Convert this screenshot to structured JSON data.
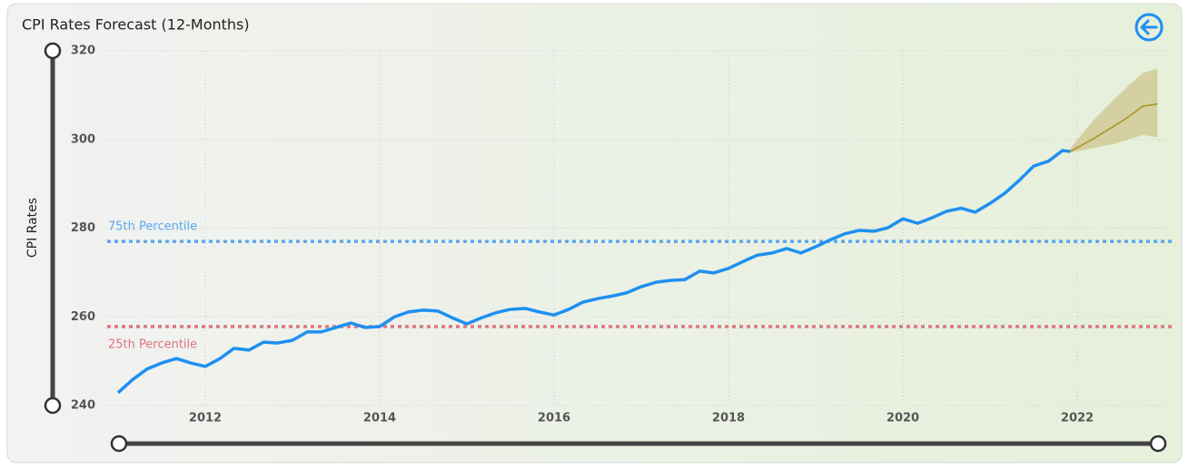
{
  "chart_data": {
    "type": "line",
    "title": "CPI Rates Forecast (12-Months)",
    "y_label": "CPI Rates",
    "x": [
      2011.0,
      2011.17,
      2011.33,
      2011.5,
      2011.67,
      2011.83,
      2012.0,
      2012.17,
      2012.33,
      2012.5,
      2012.67,
      2012.83,
      2013.0,
      2013.17,
      2013.33,
      2013.5,
      2013.67,
      2013.83,
      2014.0,
      2014.17,
      2014.33,
      2014.5,
      2014.67,
      2014.83,
      2015.0,
      2015.17,
      2015.33,
      2015.5,
      2015.67,
      2015.83,
      2016.0,
      2016.17,
      2016.33,
      2016.5,
      2016.67,
      2016.83,
      2017.0,
      2017.17,
      2017.33,
      2017.5,
      2017.67,
      2017.83,
      2018.0,
      2018.17,
      2018.33,
      2018.5,
      2018.67,
      2018.83,
      2019.0,
      2019.17,
      2019.33,
      2019.5,
      2019.67,
      2019.83,
      2020.0,
      2020.17,
      2020.33,
      2020.5,
      2020.67,
      2020.83,
      2021.0,
      2021.17,
      2021.33,
      2021.5,
      2021.67,
      2021.83,
      2021.92
    ],
    "series": [
      {
        "color": "#1e90f0",
        "values": [
          242.9,
          245.9,
          248.2,
          249.6,
          250.6,
          249.6,
          248.8,
          250.6,
          252.9,
          252.5,
          254.3,
          254.1,
          254.7,
          256.6,
          256.6,
          257.6,
          258.6,
          257.6,
          257.8,
          260.0,
          261.1,
          261.5,
          261.3,
          259.8,
          258.4,
          259.8,
          260.9,
          261.7,
          261.9,
          261.1,
          260.4,
          261.7,
          263.3,
          264.1,
          264.7,
          265.4,
          266.8,
          267.8,
          268.2,
          268.4,
          270.3,
          269.9,
          270.9,
          272.5,
          273.9,
          274.4,
          275.4,
          274.4,
          275.8,
          277.4,
          278.7,
          279.5,
          279.3,
          280.1,
          282.1,
          281.1,
          282.3,
          283.8,
          284.5,
          283.6,
          285.6,
          287.9,
          290.7,
          294.0,
          295.1,
          297.5,
          297.3
        ]
      }
    ],
    "forecast": {
      "color": "#a8901e",
      "band_color": "#c8bb7a",
      "x": [
        2021.92,
        2022.17,
        2022.42,
        2022.58,
        2022.75,
        2022.92
      ],
      "values": [
        297.3,
        300.0,
        303.0,
        305.0,
        307.5,
        308.0
      ],
      "upper": [
        298.0,
        304.0,
        309.0,
        312.0,
        315.0,
        316.0
      ],
      "lower": [
        297.0,
        298.0,
        299.0,
        300.0,
        301.0,
        300.5
      ]
    },
    "reference_lines": [
      {
        "label": "75th Percentile",
        "value": 277.0,
        "color": "#5aa8f0"
      },
      {
        "label": "25th Percentile",
        "value": 257.8,
        "color": "#e07480"
      }
    ],
    "xlim": [
      2011,
      2023
    ],
    "xticks": [
      2012,
      2014,
      2016,
      2018,
      2020,
      2022
    ],
    "ylim": [
      240,
      320
    ],
    "yticks": [
      240,
      260,
      280,
      300,
      320
    ],
    "grid": true
  }
}
